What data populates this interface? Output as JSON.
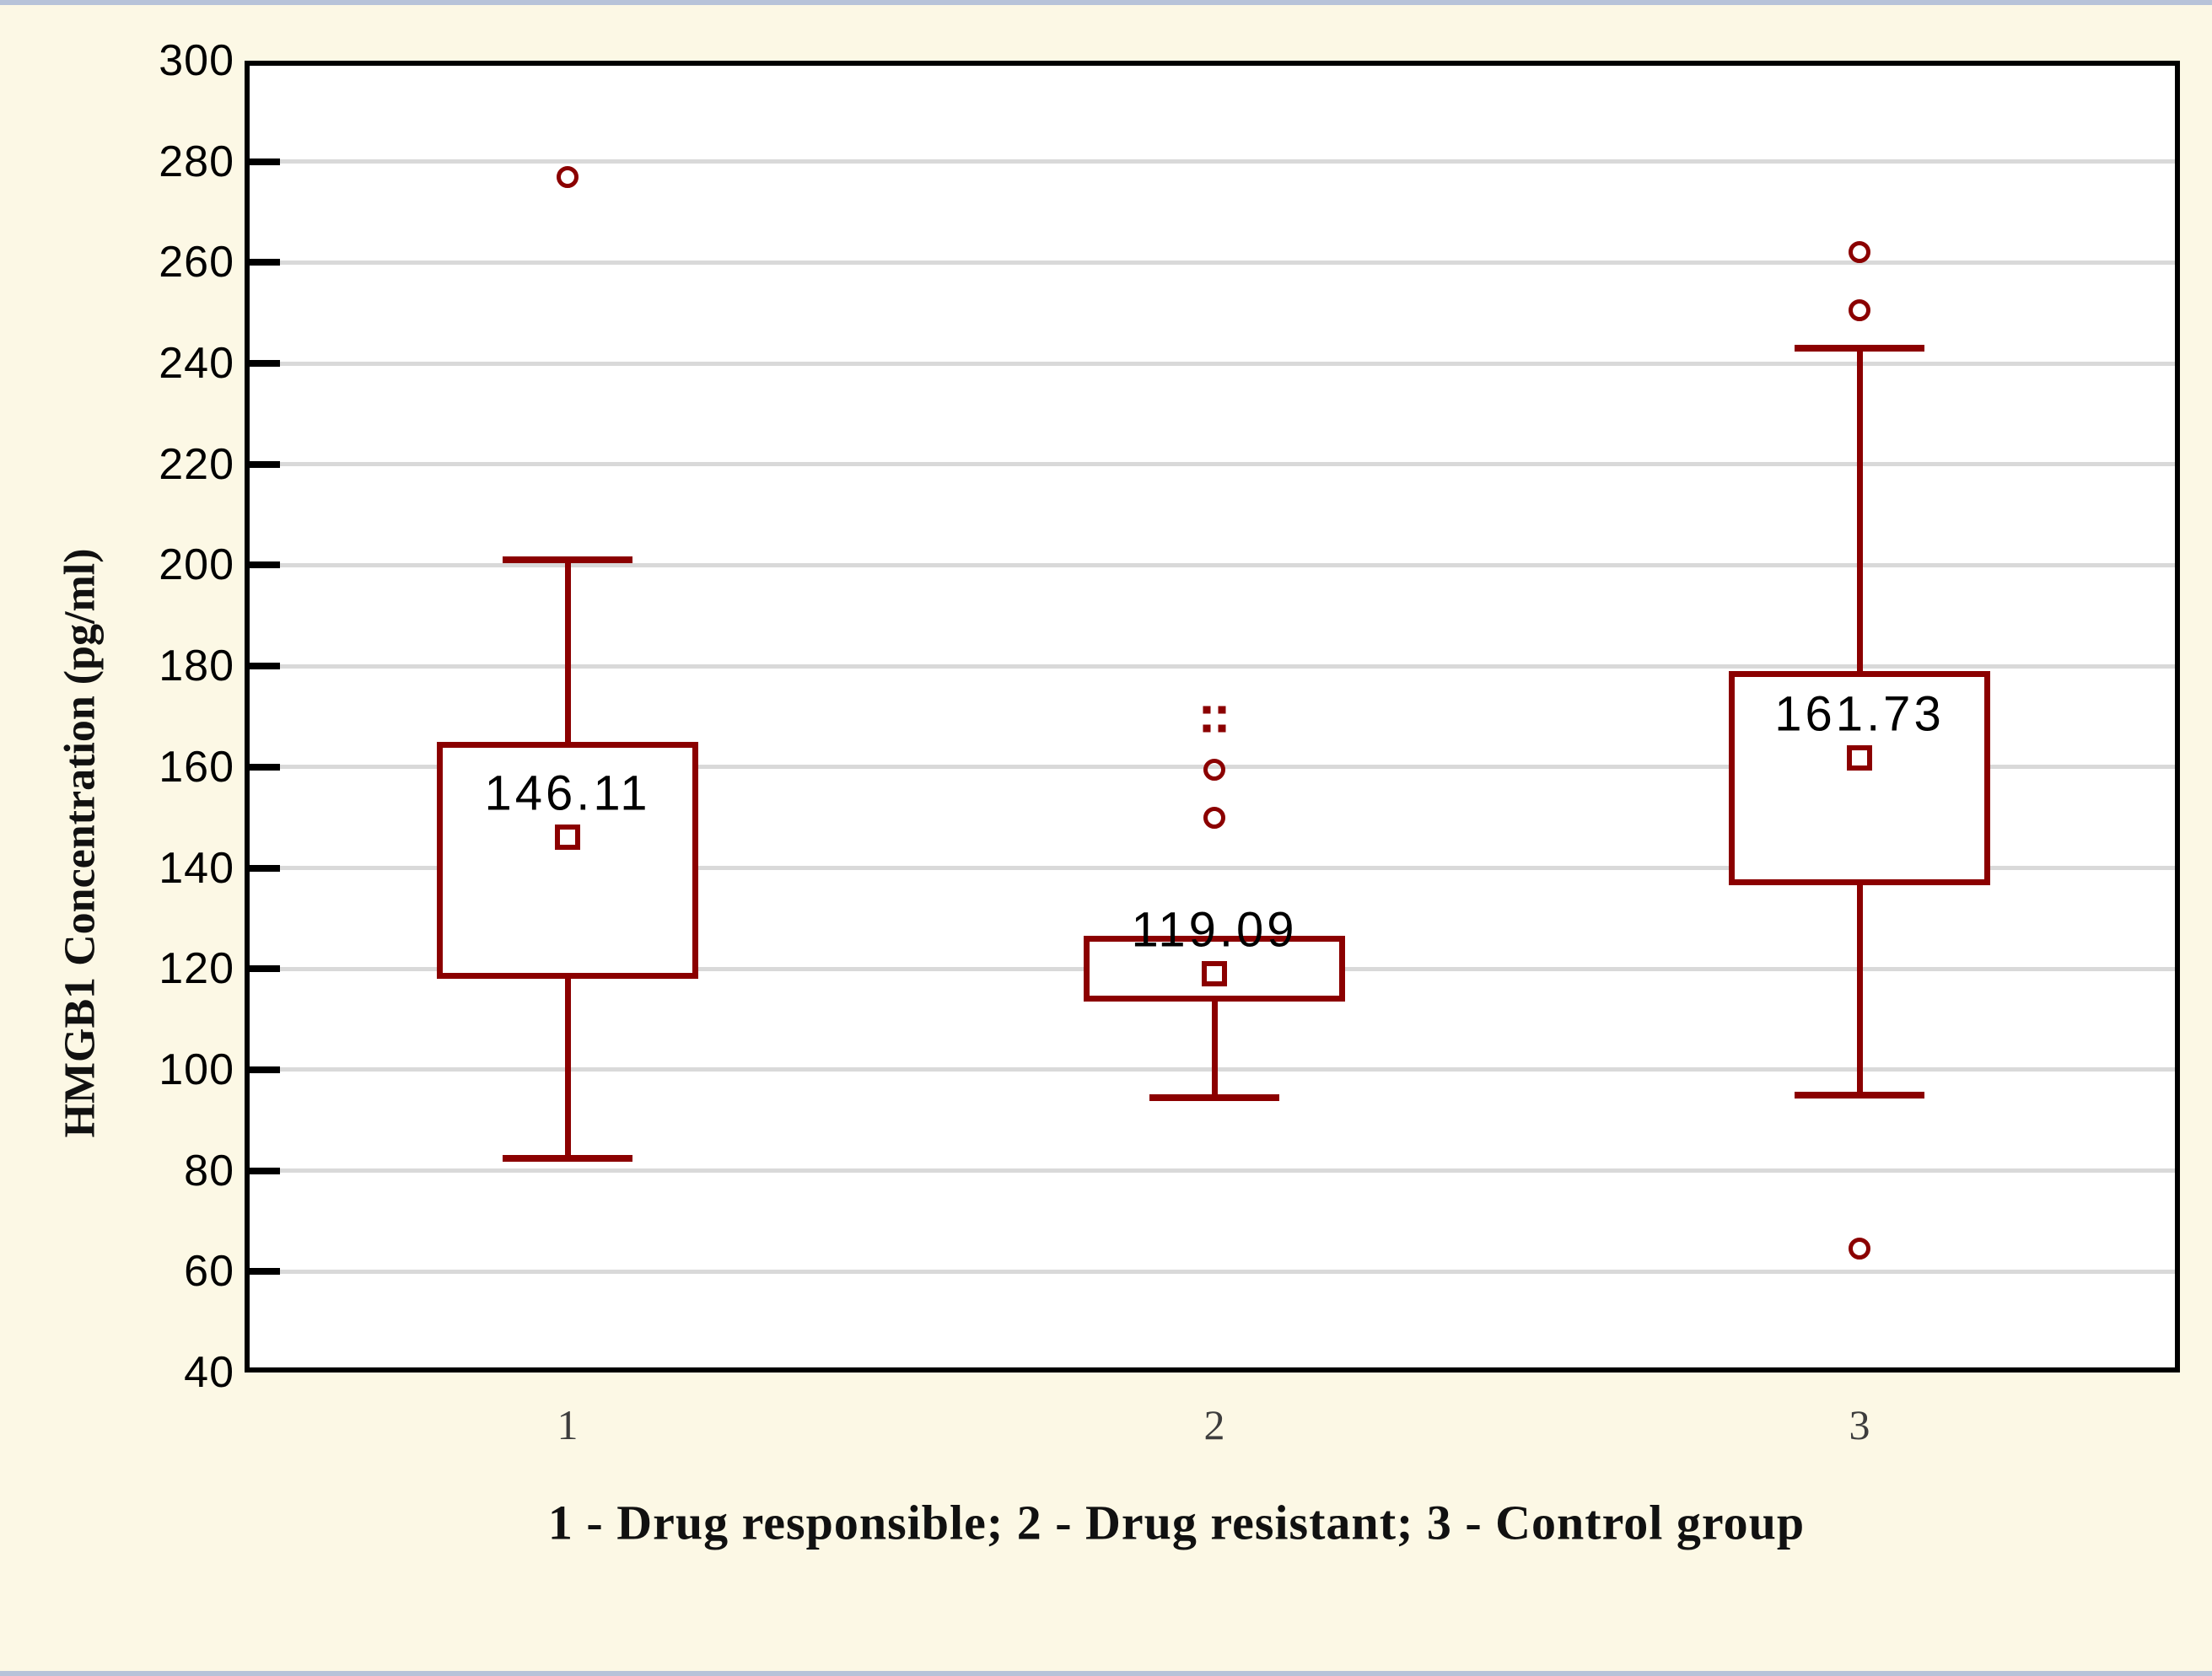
{
  "page": {
    "background_color": "#fcf8e5",
    "edge_strip_color": "#b7c3d9",
    "plot_background": "#ffffff",
    "plot_border_color": "#000000",
    "gridline_color": "#d9d9d9"
  },
  "chart_data": {
    "type": "boxplot",
    "title": "",
    "ylabel": "HMGB1 Concentration (pg/ml)",
    "xlabel": "1 - Drug responsible; 2 - Drug resistant; 3 - Control group",
    "ylim": [
      40,
      300
    ],
    "ytick_step": 20,
    "yticks": [
      300,
      280,
      260,
      240,
      220,
      200,
      180,
      160,
      140,
      120,
      100,
      80,
      60,
      40
    ],
    "grid": "horizontal",
    "legend": "none",
    "series_color": "#8b0000",
    "categories": [
      "1",
      "2",
      "3"
    ],
    "groups": [
      {
        "category": "1",
        "median": 146.11,
        "median_label": "146.11",
        "q1": 118,
        "q3": 165,
        "whisker_low": 82.5,
        "whisker_high": 201,
        "outliers": [
          277
        ],
        "extreme_dots": []
      },
      {
        "category": "2",
        "median": 119.09,
        "median_label": "119.09",
        "q1": 113.5,
        "q3": 126.5,
        "whisker_low": 94.5,
        "whisker_high": null,
        "outliers": [
          159.5,
          150
        ],
        "extreme_dots": [
          {
            "value": 171.3,
            "dx": -9
          },
          {
            "value": 171.3,
            "dx": 9
          },
          {
            "value": 167.7,
            "dx": -9
          },
          {
            "value": 167.7,
            "dx": 9
          }
        ]
      },
      {
        "category": "3",
        "median": 161.73,
        "median_label": "161.73",
        "q1": 136.5,
        "q3": 179,
        "whisker_low": 95,
        "whisker_high": 243,
        "outliers": [
          262,
          250.5,
          64.5
        ],
        "extreme_dots": []
      }
    ]
  }
}
